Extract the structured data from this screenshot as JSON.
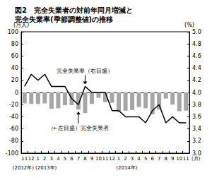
{
  "chart_data": {
    "type": "bar",
    "title": "図2　完全失業者の対前年同月増減と\n完全失業率(季節調整値)の推移",
    "ylabel": "(万人)",
    "y2label": "(%)",
    "xlabel": "(月)",
    "year_labels": [
      "(2012年)",
      "(2013年)",
      "(2014年)"
    ],
    "annotations": [
      "完全失業率（右目盛）",
      "（←左目盛）完全失業者"
    ],
    "categories": [
      "11",
      "12",
      "1",
      "2",
      "3",
      "4",
      "5",
      "6",
      "7",
      "8",
      "9",
      "10",
      "11",
      "12",
      "1",
      "2",
      "3",
      "4",
      "5",
      "6",
      "7",
      "8",
      "9",
      "10",
      "11"
    ],
    "series": [
      {
        "name": "完全失業者",
        "type": "bar",
        "color": "#a6a6a6",
        "values": [
          -18,
          -19,
          -19,
          -18,
          -27,
          -26,
          -21,
          -21,
          -28,
          -34,
          -19,
          -9,
          -16,
          -17,
          -32,
          -30,
          -29,
          -24,
          -26,
          -36,
          -28,
          -10,
          -20,
          -31,
          -30
        ]
      },
      {
        "name": "完全失業率",
        "type": "line",
        "axis": "y2",
        "color": "#000000",
        "marker": "none",
        "values": [
          4.1,
          4.3,
          4.2,
          4.3,
          4.1,
          4.1,
          4.1,
          3.9,
          3.8,
          4.1,
          4.0,
          4.0,
          4.0,
          3.7,
          3.7,
          3.6,
          3.6,
          3.6,
          3.5,
          3.7,
          3.8,
          3.5,
          3.6,
          3.5,
          3.5
        ]
      }
    ],
    "ylim": [
      -100,
      100
    ],
    "yticks": [
      -100,
      -80,
      -60,
      -40,
      -20,
      0,
      20,
      40,
      60,
      80,
      100
    ],
    "y2lim": [
      3.0,
      5.0
    ],
    "y2ticks": [
      {
        "value": 3.0,
        "label": "3.0"
      },
      {
        "value": 3.2,
        "label": "3.2"
      },
      {
        "value": 3.4,
        "label": "3.4"
      },
      {
        "value": 3.6,
        "label": "3.6"
      },
      {
        "value": 3.8,
        "label": "3.8"
      },
      {
        "value": 4.0,
        "label": "4.0"
      },
      {
        "value": 4.2,
        "label": "4.2"
      },
      {
        "value": 4.4,
        "label": "4.4"
      },
      {
        "value": 4.6,
        "label": "4.6"
      },
      {
        "value": 4.8,
        "label": "4.8"
      },
      {
        "value": 5.0,
        "label": "5.0"
      }
    ],
    "grid": false
  }
}
